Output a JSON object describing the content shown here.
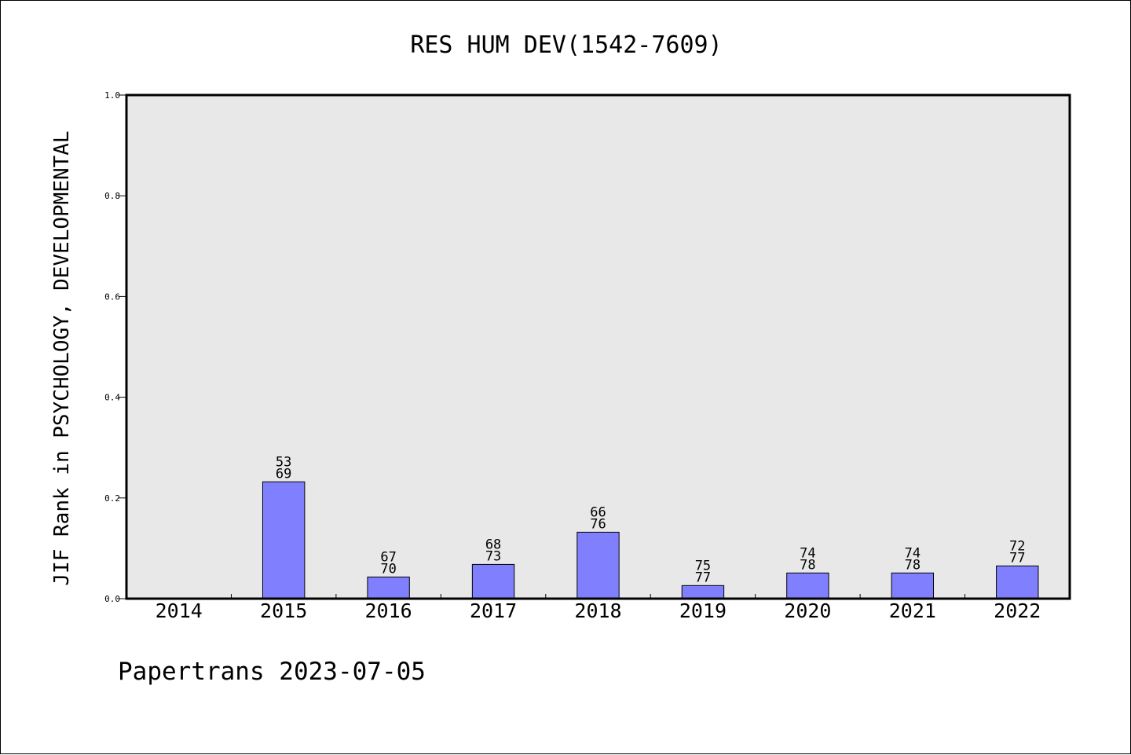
{
  "chart_data": {
    "type": "bar",
    "title": "RES HUM DEV(1542-7609)",
    "xlabel": "",
    "ylabel": "JIF Rank in PSYCHOLOGY, DEVELOPMENTAL",
    "categories": [
      "2014",
      "2015",
      "2016",
      "2017",
      "2018",
      "2019",
      "2020",
      "2021",
      "2022"
    ],
    "values": [
      0,
      0.232,
      0.043,
      0.068,
      0.132,
      0.026,
      0.051,
      0.051,
      0.065
    ],
    "rank_labels": [
      null,
      {
        "rank": "53",
        "total": "69"
      },
      {
        "rank": "67",
        "total": "70"
      },
      {
        "rank": "68",
        "total": "73"
      },
      {
        "rank": "66",
        "total": "76"
      },
      {
        "rank": "75",
        "total": "77"
      },
      {
        "rank": "74",
        "total": "78"
      },
      {
        "rank": "74",
        "total": "78"
      },
      {
        "rank": "72",
        "total": "77"
      }
    ],
    "ylim": [
      0,
      1.0
    ],
    "yticks": [
      "0.0",
      "0.2",
      "0.4",
      "0.6",
      "0.8",
      "1.0"
    ],
    "grid": false,
    "legend": "none",
    "colors": {
      "bar_fill": "#8080ff",
      "bar_stroke": "#000000",
      "plot_background": "#e8e8e8",
      "axes_border": "#000000"
    }
  },
  "footer": {
    "text": "Papertrans 2023-07-05"
  }
}
